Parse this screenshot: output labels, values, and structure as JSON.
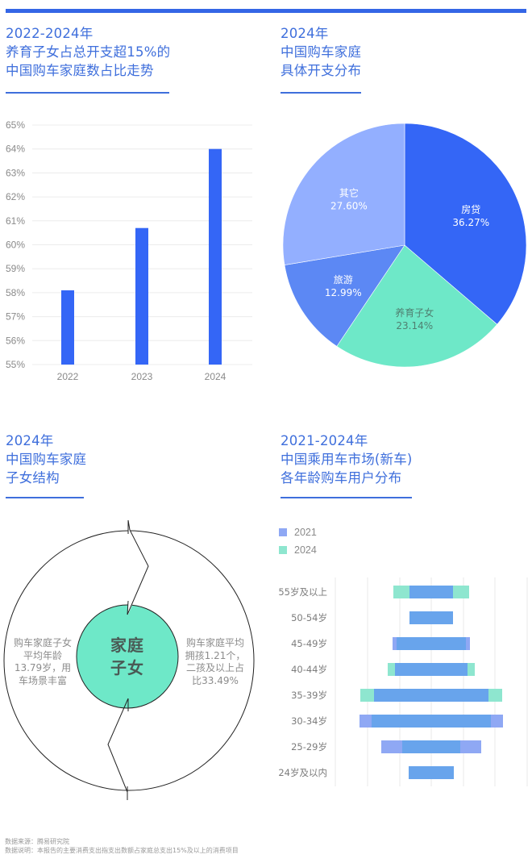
{
  "page": {
    "accent_color": "#3466e6"
  },
  "sections": {
    "bar_section": {
      "title_lines": [
        "2022-2024年",
        "养育子女占总开支超15%的",
        "中国购车家庭数占比走势"
      ]
    },
    "pie_section": {
      "title_lines": [
        "2024年",
        "中国购车家庭",
        "具体开支分布"
      ]
    },
    "children_section": {
      "title_lines": [
        "2024年",
        "中国购车家庭",
        "子女结构"
      ],
      "center_label_lines": [
        "家庭",
        "子女"
      ],
      "left_text_lines": [
        "购车家庭子女",
        "平均年龄",
        "13.79岁，用",
        "车场景丰富"
      ],
      "right_text_lines": [
        "购车家庭平均",
        "拥孩1.21个，",
        "二孩及以上占",
        "比33.49%"
      ]
    },
    "age_section": {
      "title_lines": [
        "2021-2024年",
        "中国乘用车市场(新车)",
        "各年龄购车用户分布"
      ],
      "legend": [
        {
          "label": "2021",
          "color": "#8fa8f4"
        },
        {
          "label": "2024",
          "color": "#8ee6cf"
        }
      ]
    }
  },
  "chart_data": [
    {
      "type": "bar",
      "title": "2022-2024年 养育子女占总开支超15%的中国购车家庭数占比走势",
      "categories": [
        "2022",
        "2023",
        "2024"
      ],
      "values": [
        58.1,
        60.7,
        64.0
      ],
      "xlabel": "",
      "ylabel": "",
      "ylim": [
        55,
        65
      ],
      "yticks": [
        "55%",
        "56%",
        "57%",
        "58%",
        "59%",
        "60%",
        "61%",
        "62%",
        "63%",
        "64%",
        "65%"
      ],
      "grid": true,
      "bar_color": "#3466f6"
    },
    {
      "type": "pie",
      "title": "2024年 中国购车家庭具体开支分布",
      "slices": [
        {
          "label": "房贷",
          "value": 36.27,
          "display": "36.27%",
          "color": "#3466f6"
        },
        {
          "label": "养育子女",
          "value": 23.14,
          "display": "23.14%",
          "color": "#6ee8c8"
        },
        {
          "label": "旅游",
          "value": 12.99,
          "display": "12.99%",
          "color": "#5c88f4"
        },
        {
          "label": "其它",
          "value": 27.6,
          "display": "27.60%",
          "color": "#93afff"
        }
      ]
    },
    {
      "type": "bar",
      "subtype": "butterfly",
      "title": "2021-2024年 中国乘用车市场(新车)各年龄购车用户分布",
      "categories": [
        "55岁及以上",
        "50-54岁",
        "45-49岁",
        "40-44岁",
        "35-39岁",
        "30-34岁",
        "25-29岁",
        "24岁及以内"
      ],
      "series": [
        {
          "name": "2021",
          "color": "#8fa8f4",
          "values": [
            5.4,
            5.4,
            9.6,
            9.0,
            14.2,
            17.8,
            12.4,
            5.6
          ]
        },
        {
          "name": "2024",
          "color": "#8ee6cf",
          "values": [
            9.4,
            5.4,
            8.6,
            10.8,
            17.6,
            14.8,
            7.2,
            5.6
          ]
        }
      ],
      "overlap_color": "#68a4ec",
      "legend_position": "top-left",
      "grid": true,
      "note": "Values are relative half-widths estimated from pixel extents (no axis tick labels shown)"
    }
  ],
  "footer": {
    "source": "数据来源：腾易研究院",
    "note": "数据说明：本报告的主要消费支出指支出数额占家庭总支出15%及以上的消费项目"
  }
}
